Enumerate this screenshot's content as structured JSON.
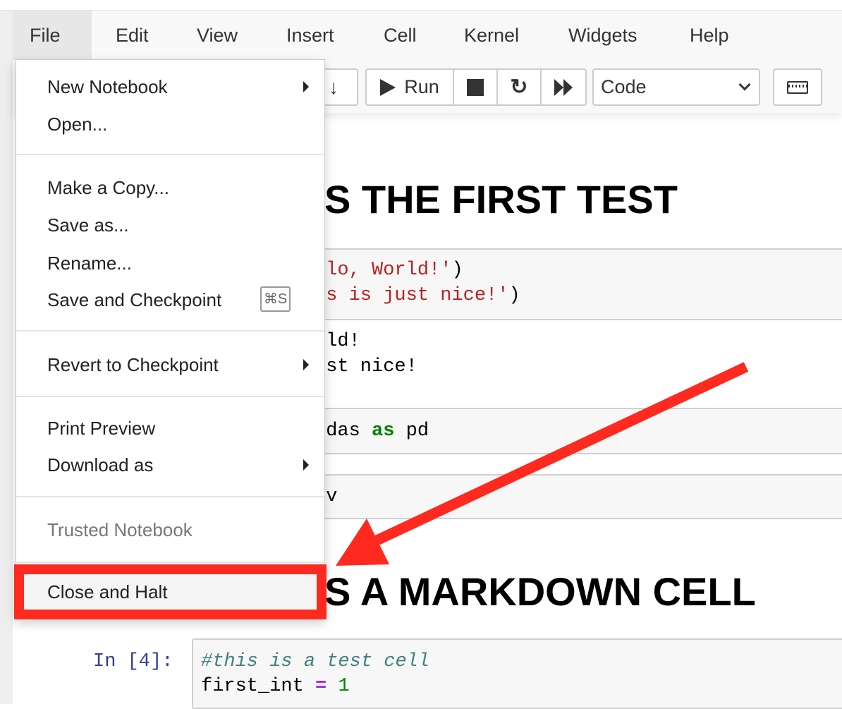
{
  "menubar": {
    "items": [
      "File",
      "Edit",
      "View",
      "Insert",
      "Cell",
      "Kernel",
      "Widgets",
      "Help"
    ],
    "active": "File"
  },
  "toolbar": {
    "run_label": "Run",
    "cell_type": "Code",
    "icons": [
      "arrow-down-icon",
      "play-icon",
      "stop-icon",
      "restart-icon",
      "fast-forward-icon",
      "keyboard-icon"
    ]
  },
  "file_menu": {
    "items": [
      {
        "label": "New Notebook",
        "submenu": true
      },
      {
        "label": "Open..."
      },
      {
        "label": "Make a Copy..."
      },
      {
        "label": "Save as..."
      },
      {
        "label": "Rename..."
      },
      {
        "label": "Save and Checkpoint",
        "shortcut": "⌘S"
      },
      {
        "label": "Revert to Checkpoint",
        "submenu": true
      },
      {
        "label": "Print Preview"
      },
      {
        "label": "Download as",
        "submenu": true
      },
      {
        "label": "Trusted Notebook",
        "disabled": true
      },
      {
        "label": "Close and Halt",
        "highlighted": true
      }
    ]
  },
  "notebook": {
    "heading1": "S THE FIRST TEST",
    "cell1": {
      "line1_str": "llo, World!'",
      "line1_end": ")",
      "line2_str": "is is just nice!'",
      "line2_end": ")"
    },
    "output1": {
      "line1": "rld!",
      "line2": "ust nice!"
    },
    "cell2": {
      "pre": "ndas ",
      "kw": "as",
      "post": " pd"
    },
    "cell3": {
      "text": "sv"
    },
    "heading2": "S A MARKDOWN CELL",
    "cell4": {
      "prompt": "In [4]:",
      "comment": "#this is a test cell",
      "var": "first_int ",
      "op": "=",
      "num": "1"
    }
  },
  "colors": {
    "annotation": "#ff2a1f",
    "string": "#ba2121",
    "keyword": "#008000",
    "prompt": "#303f9f"
  }
}
